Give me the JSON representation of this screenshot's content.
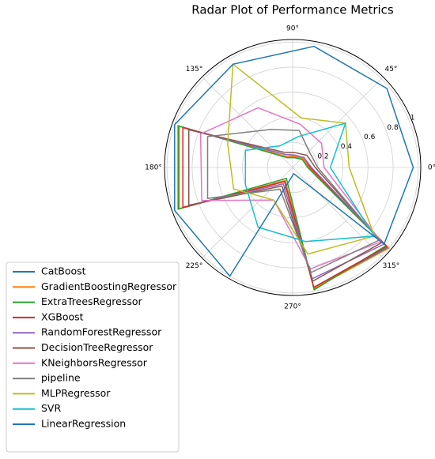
{
  "chart_data": {
    "type": "radar",
    "title": "Radar Plot of Performance Metrics",
    "x": [
      0,
      40,
      80,
      120,
      160,
      200,
      240,
      280,
      320
    ],
    "xticks": [
      {
        "value": 0,
        "label": "0°"
      },
      {
        "value": 45,
        "label": "45°"
      },
      {
        "value": 90,
        "label": "90°"
      },
      {
        "value": 135,
        "label": "135°"
      },
      {
        "value": 180,
        "label": "180°"
      },
      {
        "value": 225,
        "label": "225°"
      },
      {
        "value": 270,
        "label": "270°"
      },
      {
        "value": 315,
        "label": "315°"
      }
    ],
    "ylim": [
      0,
      1.02
    ],
    "yticks": [
      0.2,
      0.4,
      0.6,
      0.8,
      1.0
    ],
    "grid": true,
    "series": [
      {
        "name": "CatBoost",
        "color": "#1f77b4",
        "values": [
          0.12,
          0.1,
          0.08,
          0.1,
          0.97,
          0.97,
          0.12,
          0.98,
          0.99
        ]
      },
      {
        "name": "GradientBoostingRegressor",
        "color": "#ff7f0e",
        "values": [
          0.13,
          0.11,
          0.09,
          0.1,
          0.96,
          0.96,
          0.12,
          0.98,
          1.0
        ]
      },
      {
        "name": "ExtraTreesRegressor",
        "color": "#2ca02c",
        "values": [
          0.12,
          0.1,
          0.08,
          0.09,
          0.97,
          0.97,
          0.1,
          0.99,
          0.97
        ]
      },
      {
        "name": "XGBoost",
        "color": "#d62728",
        "values": [
          0.14,
          0.12,
          0.1,
          0.12,
          0.93,
          0.93,
          0.13,
          0.97,
          0.98
        ]
      },
      {
        "name": "RandomForestRegressor",
        "color": "#9467bd",
        "values": [
          0.15,
          0.12,
          0.1,
          0.12,
          0.88,
          0.88,
          0.15,
          0.9,
          0.95
        ]
      },
      {
        "name": "DecisionTreeRegressor",
        "color": "#8c564b",
        "values": [
          0.18,
          0.15,
          0.12,
          0.14,
          0.88,
          0.88,
          0.17,
          0.92,
          0.93
        ]
      },
      {
        "name": "KNeighborsRegressor",
        "color": "#e377c2",
        "values": [
          0.25,
          0.3,
          0.35,
          0.55,
          0.78,
          0.77,
          0.3,
          0.82,
          0.92
        ]
      },
      {
        "name": "pipeline",
        "color": "#7f7f7f",
        "values": [
          0.2,
          0.18,
          0.3,
          0.35,
          0.72,
          0.72,
          0.2,
          0.85,
          0.9
        ]
      },
      {
        "name": "MLPRegressor",
        "color": "#bcbd22",
        "values": [
          0.45,
          0.55,
          0.4,
          0.95,
          0.55,
          0.5,
          0.3,
          0.7,
          0.85
        ]
      },
      {
        "name": "SVR",
        "color": "#17becf",
        "values": [
          0.3,
          0.55,
          0.25,
          0.2,
          0.4,
          0.4,
          0.55,
          0.6,
          0.85
        ]
      },
      {
        "name": "LinearRegression",
        "color": "#1f77b4",
        "values": [
          0.96,
          0.98,
          0.98,
          0.95,
          1.0,
          1.0,
          1.0,
          0.05,
          0.95
        ]
      }
    ]
  }
}
